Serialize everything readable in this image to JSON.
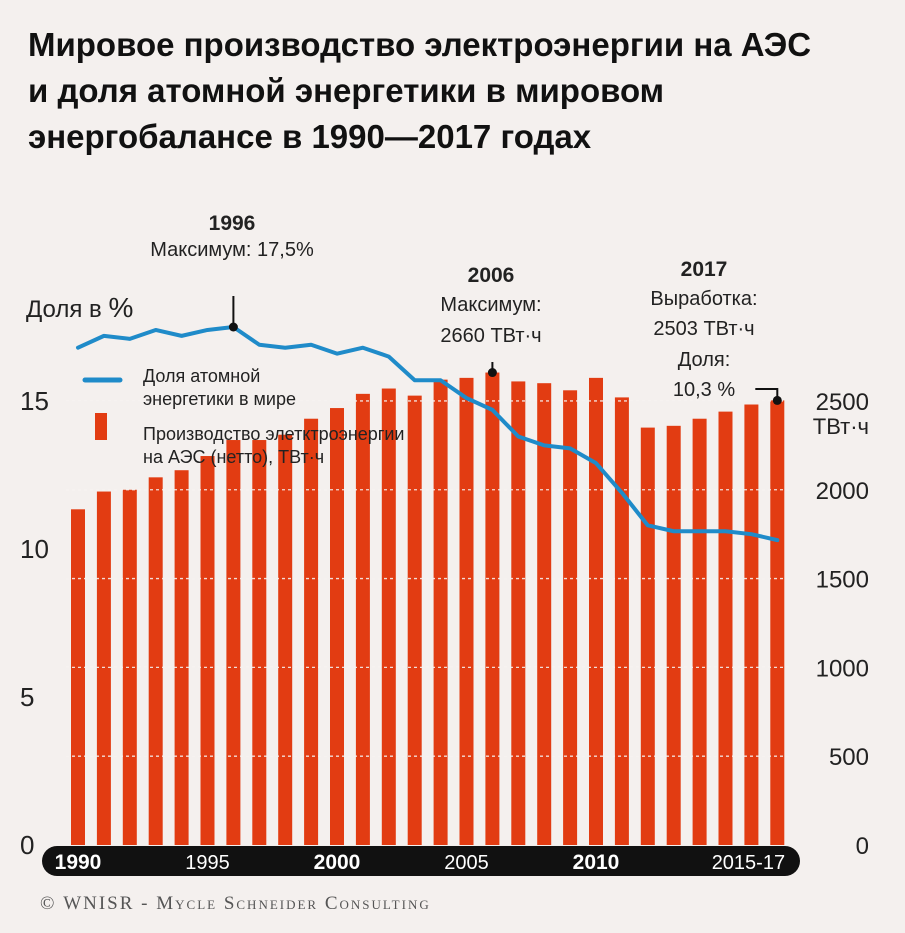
{
  "title_lines": [
    "Мировое производство электроэнергии на АЭС",
    "и доля атомной энергетики в мировом",
    "энергобалансе в 1990—2017 годах"
  ],
  "credit": {
    "copyright": "©",
    "org": "WNISR - Mycle Schneider Consulting"
  },
  "colors": {
    "bar": "#e23c12",
    "line": "#1f8bc9",
    "background": "#f4f0ee",
    "axis_band": "#111111",
    "text": "#111111"
  },
  "chart_data": {
    "type": "bar+line",
    "years": [
      1990,
      1991,
      1992,
      1993,
      1994,
      1995,
      1996,
      1997,
      1998,
      1999,
      2000,
      2001,
      2002,
      2003,
      2004,
      2005,
      2006,
      2007,
      2008,
      2009,
      2010,
      2011,
      2012,
      2013,
      2014,
      2015,
      2016,
      2017
    ],
    "x_tick_labels": [
      {
        "year": 1990,
        "label": "1990",
        "bold": true
      },
      {
        "year": 1995,
        "label": "1995",
        "bold": false
      },
      {
        "year": 2000,
        "label": "2000",
        "bold": true
      },
      {
        "year": 2005,
        "label": "2005",
        "bold": false
      },
      {
        "year": 2010,
        "label": "2010",
        "bold": true
      },
      {
        "year": 2016,
        "label": "2015-17",
        "bold": false
      }
    ],
    "series": [
      {
        "name": "Производство элетктроэнергии на АЭС (нетто), ТВт·ч",
        "kind": "bar",
        "axis": "right",
        "values": [
          1890,
          1990,
          2000,
          2070,
          2110,
          2190,
          2280,
          2280,
          2310,
          2400,
          2460,
          2540,
          2570,
          2530,
          2620,
          2630,
          2660,
          2610,
          2600,
          2560,
          2630,
          2520,
          2350,
          2360,
          2400,
          2440,
          2480,
          2503
        ]
      },
      {
        "name": "Доля атомной энергетики в мире",
        "kind": "line",
        "axis": "left",
        "values": [
          16.8,
          17.2,
          17.1,
          17.4,
          17.2,
          17.4,
          17.5,
          16.9,
          16.8,
          16.9,
          16.6,
          16.8,
          16.5,
          15.7,
          15.7,
          15.1,
          14.7,
          13.8,
          13.5,
          13.4,
          12.9,
          11.9,
          10.8,
          10.6,
          10.6,
          10.6,
          10.5,
          10.3
        ]
      }
    ],
    "left_axis": {
      "label": "Доля в",
      "unit": "%",
      "ticks": [
        "0",
        "5",
        "10",
        "15"
      ],
      "range": [
        0,
        20
      ]
    },
    "right_axis": {
      "label": "ТВт·ч",
      "ticks": [
        "0",
        "500",
        "1000",
        "1500",
        "2000",
        "2500"
      ],
      "range": [
        0,
        3333
      ]
    },
    "legend": {
      "line_label_1": "Доля атомной",
      "line_label_2": "энергетики в мире",
      "bar_label_1": "Производство элетктроэнергии",
      "bar_label_2": "на АЭС (нетто), ТВт·ч"
    },
    "annotations": [
      {
        "year_label": "1996",
        "lines": [
          "Максимум: 17,5%"
        ]
      },
      {
        "year_label": "2006",
        "lines": [
          "Максимум:",
          "2660 ТВт·ч"
        ]
      },
      {
        "year_label": "2017",
        "lines": [
          "Выработка:",
          "2503 ТВт·ч",
          "Доля:",
          "10,3 %"
        ]
      }
    ]
  }
}
